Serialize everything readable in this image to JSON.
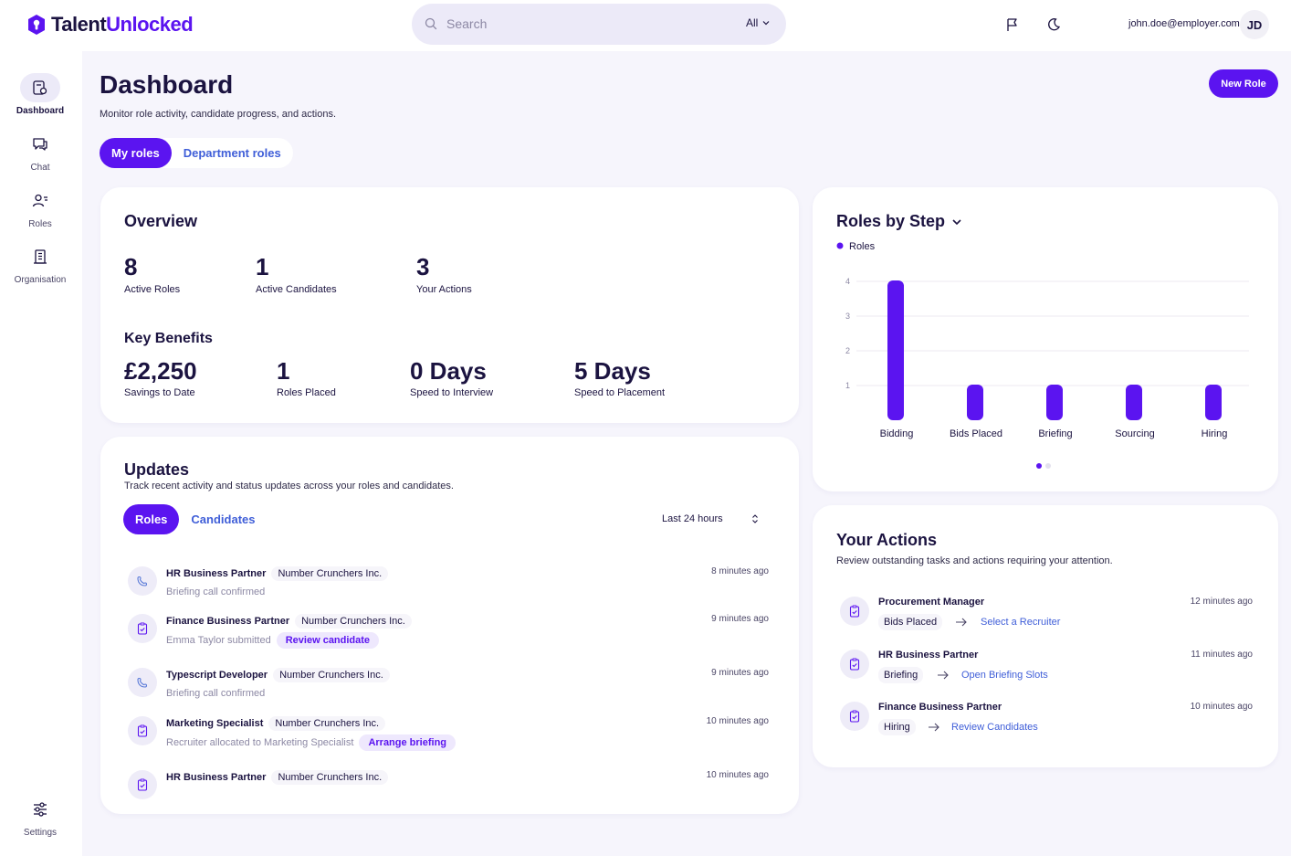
{
  "app": {
    "brand_a": "Talent",
    "brand_b": "Unlocked",
    "brand_color": "#5b14f0"
  },
  "search": {
    "placeholder": "Search",
    "filter": "All"
  },
  "user": {
    "email": "john.doe@employer.com",
    "initials": "JD"
  },
  "sidebar": {
    "items": [
      {
        "label": "Dashboard",
        "icon": "dashboard-icon",
        "active": true
      },
      {
        "label": "Chat",
        "icon": "chat-icon"
      },
      {
        "label": "Roles",
        "icon": "roles-icon"
      },
      {
        "label": "Organisation",
        "icon": "organisation-icon"
      }
    ],
    "settings": "Settings"
  },
  "header": {
    "title": "Dashboard",
    "subtitle": "Monitor role activity, candidate progress, and actions.",
    "new_role": "New Role",
    "tabs": [
      "My roles",
      "Department roles"
    ]
  },
  "overview": {
    "title": "Overview",
    "stats": [
      {
        "value": "8",
        "label": "Active Roles"
      },
      {
        "value": "1",
        "label": "Active Candidates"
      },
      {
        "value": "3",
        "label": "Your Actions"
      }
    ],
    "benefits_title": "Key Benefits",
    "benefits": [
      {
        "value": "£2,250",
        "label": "Savings to Date"
      },
      {
        "value": "1",
        "label": "Roles Placed"
      },
      {
        "value": "0 Days",
        "label": "Speed to Interview"
      },
      {
        "value": "5 Days",
        "label": "Speed to Placement"
      }
    ]
  },
  "roles_by_step": {
    "title": "Roles by Step",
    "chart_data": {
      "type": "bar",
      "title": "Roles by Step",
      "categories": [
        "Bidding",
        "Bids Placed",
        "Briefing",
        "Sourcing",
        "Hiring"
      ],
      "series": [
        {
          "name": "Roles",
          "values": [
            4,
            1,
            1,
            1,
            1
          ]
        }
      ],
      "yticks": [
        "1",
        "2",
        "3",
        "4"
      ],
      "ylim": [
        0,
        4
      ],
      "grid": true,
      "legend": "top-left",
      "color": "#5b14f0"
    }
  },
  "updates": {
    "title": "Updates",
    "subtitle": "Track recent activity and status updates across your roles and candidates.",
    "tabs": [
      "Roles",
      "Candidates"
    ],
    "period": "Last 24 hours",
    "items": [
      {
        "role": "HR Business Partner",
        "company": "Number Crunchers Inc.",
        "status": "Briefing call confirmed",
        "action": "",
        "time": "8 minutes ago",
        "icon": "call-icon"
      },
      {
        "role": "Finance Business Partner",
        "company": "Number Crunchers Inc.",
        "status": "Emma Taylor submitted",
        "action": "Review candidate",
        "time": "9 minutes ago",
        "icon": "clipboard-icon"
      },
      {
        "role": "Typescript Developer",
        "company": "Number Crunchers Inc.",
        "status": "Briefing call confirmed",
        "action": "",
        "time": "9 minutes ago",
        "icon": "call-icon"
      },
      {
        "role": "Marketing Specialist",
        "company": "Number Crunchers Inc.",
        "status": "Recruiter allocated to Marketing Specialist",
        "action": "Arrange briefing",
        "time": "10 minutes ago",
        "icon": "clipboard-icon"
      },
      {
        "role": "HR Business Partner",
        "company": "Number Crunchers Inc.",
        "status": "",
        "action": "",
        "time": "10 minutes ago",
        "icon": "clipboard-icon"
      }
    ]
  },
  "actions": {
    "title": "Your Actions",
    "subtitle": "Review outstanding tasks and actions requiring your attention.",
    "items": [
      {
        "role": "Procurement Manager",
        "step": "Bids Placed",
        "link": "Select a Recruiter",
        "time": "12 minutes ago"
      },
      {
        "role": "HR Business Partner",
        "step": "Briefing",
        "link": "Open Briefing Slots",
        "time": "11 minutes ago"
      },
      {
        "role": "Finance Business Partner",
        "step": "Hiring",
        "link": "Review Candidates",
        "time": "10 minutes ago"
      }
    ]
  }
}
